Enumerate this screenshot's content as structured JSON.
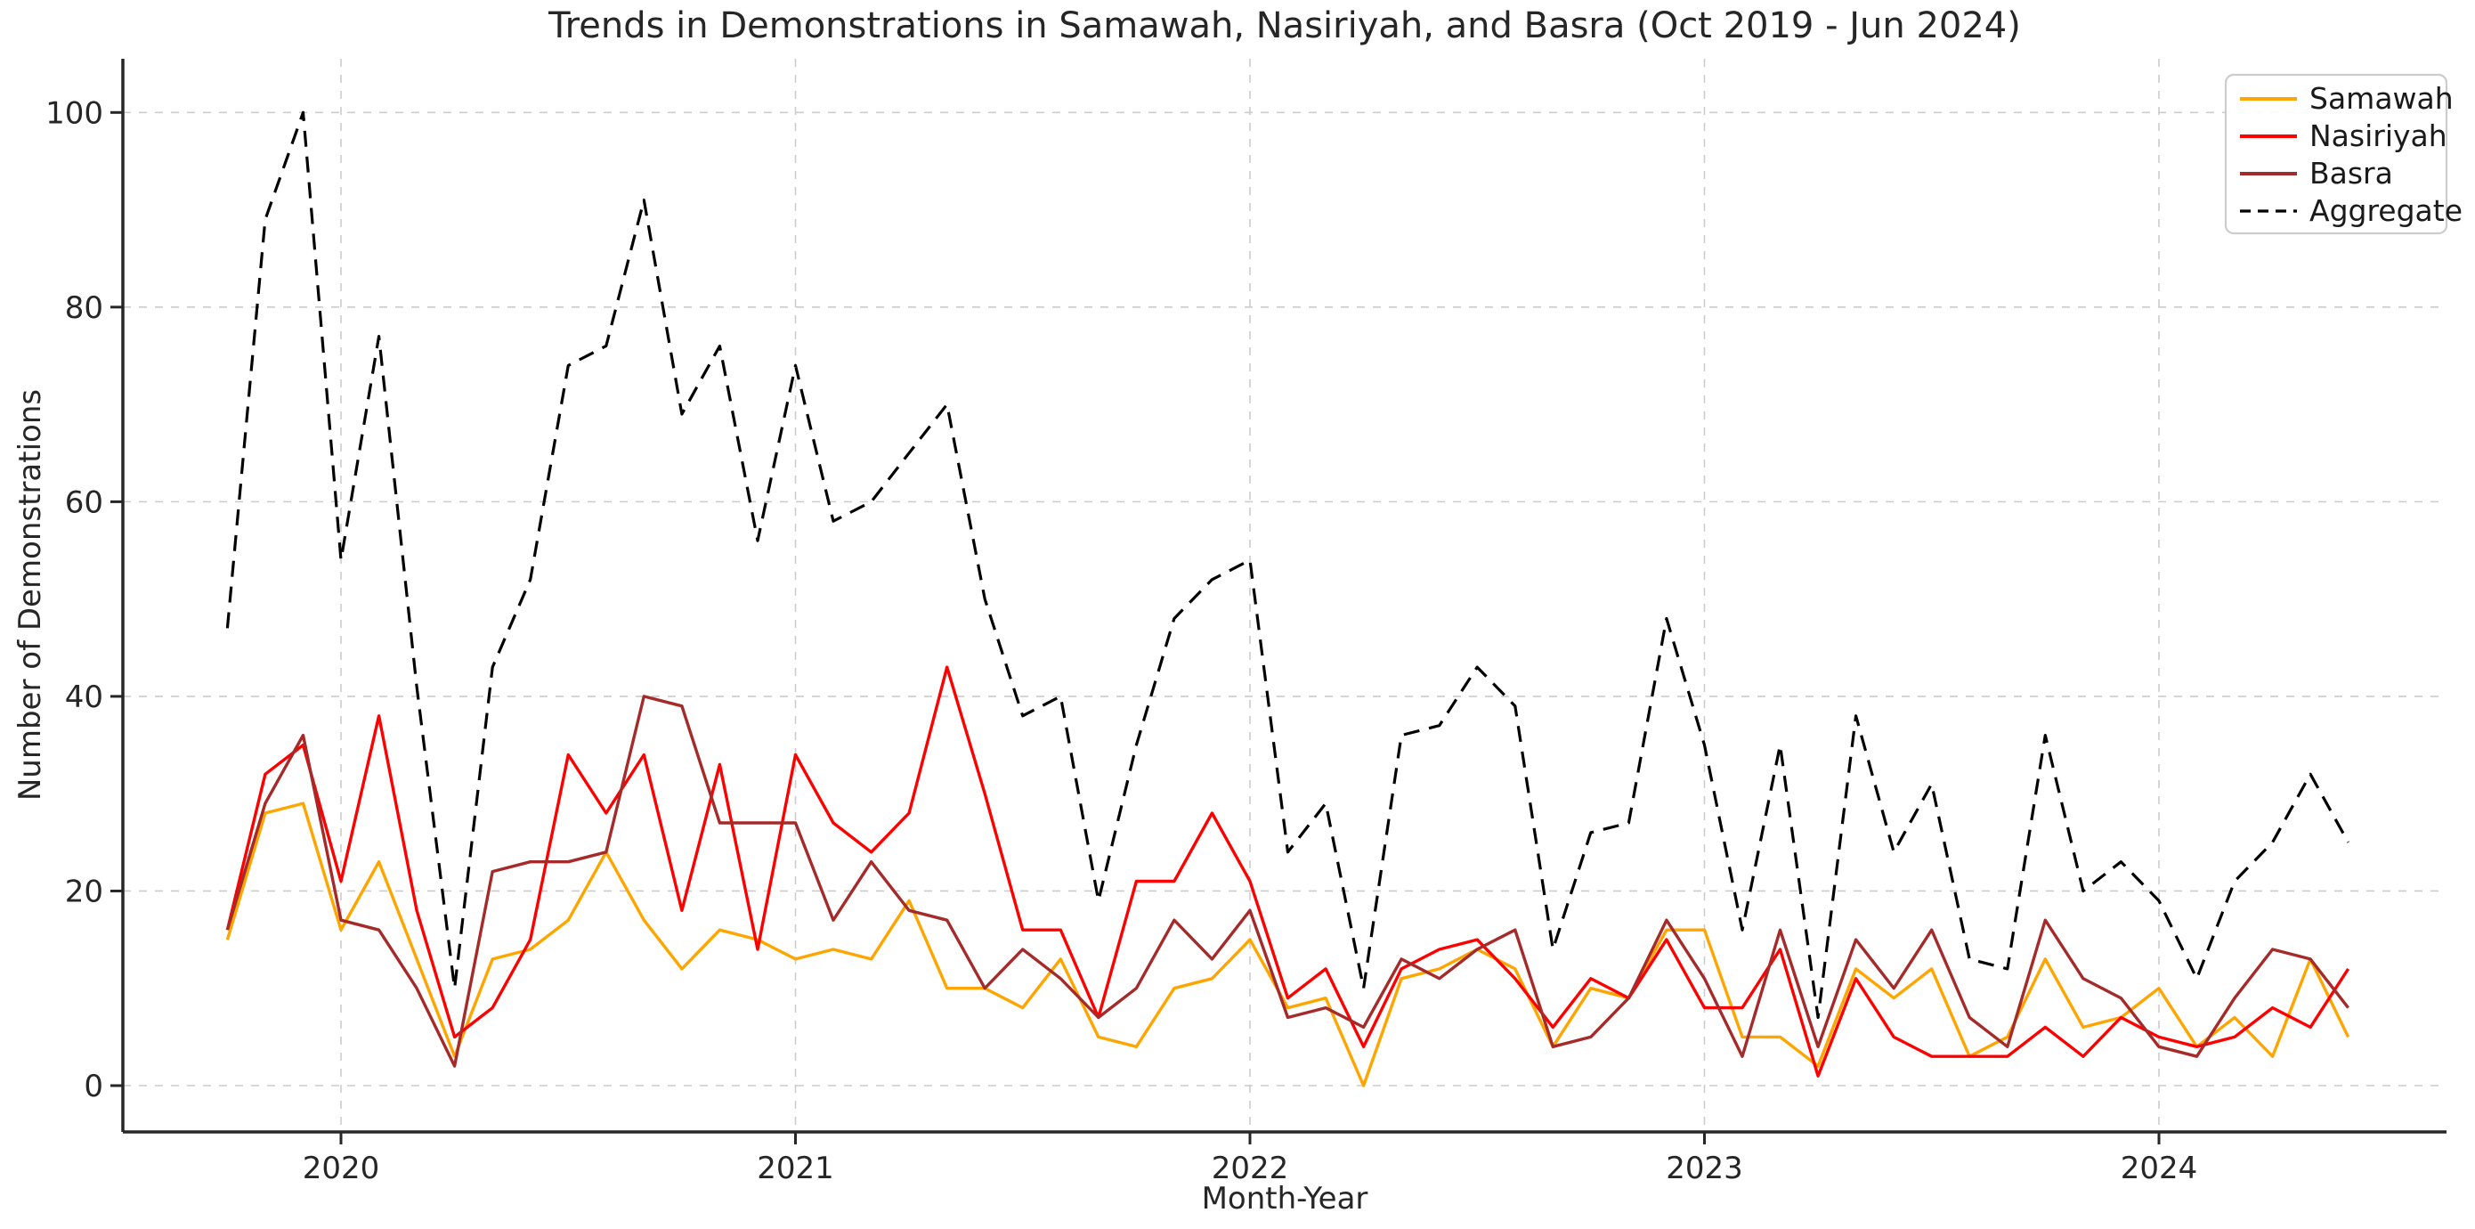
{
  "title": "Trends in Demonstrations in Samawah, Nasiriyah, and Basra (Oct 2019 - Jun 2024)",
  "chart_data": {
    "type": "line",
    "title": "Trends in Demonstrations in Samawah, Nasiriyah, and Basra (Oct 2019 - Jun 2024)",
    "xlabel": "Month-Year",
    "ylabel": "Number of Demonstrations",
    "x_tick_labels": [
      "2020",
      "2021",
      "2022",
      "2023",
      "2024"
    ],
    "y_ticks": [
      0,
      20,
      40,
      60,
      80,
      100
    ],
    "ylim": [
      -5,
      105
    ],
    "grid": true,
    "legend_position": "upper right",
    "background": "#ffffff",
    "grid_color": "#cccccc",
    "axis_color": "#262626",
    "months": [
      "2019-10",
      "2019-11",
      "2019-12",
      "2020-01",
      "2020-02",
      "2020-03",
      "2020-04",
      "2020-05",
      "2020-06",
      "2020-07",
      "2020-08",
      "2020-09",
      "2020-10",
      "2020-11",
      "2020-12",
      "2021-01",
      "2021-02",
      "2021-03",
      "2021-04",
      "2021-05",
      "2021-06",
      "2021-07",
      "2021-08",
      "2021-09",
      "2021-10",
      "2021-11",
      "2021-12",
      "2022-01",
      "2022-02",
      "2022-03",
      "2022-04",
      "2022-05",
      "2022-06",
      "2022-07",
      "2022-08",
      "2022-09",
      "2022-10",
      "2022-11",
      "2022-12",
      "2023-01",
      "2023-02",
      "2023-03",
      "2023-04",
      "2023-05",
      "2023-06",
      "2023-07",
      "2023-08",
      "2023-09",
      "2023-10",
      "2023-11",
      "2023-12",
      "2024-01",
      "2024-02",
      "2024-03",
      "2024-04",
      "2024-05",
      "2024-06"
    ],
    "series": [
      {
        "name": "Samawah",
        "color": "#FFA500",
        "style": "solid",
        "values": [
          15,
          28,
          29,
          16,
          23,
          13,
          3,
          13,
          14,
          17,
          24,
          17,
          12,
          16,
          15,
          13,
          14,
          13,
          19,
          10,
          10,
          8,
          13,
          5,
          4,
          10,
          11,
          15,
          8,
          9,
          0,
          11,
          12,
          14,
          12,
          4,
          10,
          9,
          16,
          16,
          5,
          5,
          2,
          12,
          9,
          12,
          3,
          5,
          13,
          6,
          7,
          10,
          4,
          7,
          3,
          13,
          5
        ]
      },
      {
        "name": "Nasiriyah",
        "color": "#FF0000",
        "style": "solid",
        "values": [
          16,
          32,
          35,
          21,
          38,
          18,
          5,
          8,
          15,
          34,
          28,
          34,
          18,
          33,
          14,
          34,
          27,
          24,
          28,
          43,
          30,
          16,
          16,
          7,
          21,
          21,
          28,
          21,
          9,
          12,
          4,
          12,
          14,
          15,
          11,
          6,
          11,
          9,
          15,
          8,
          8,
          14,
          1,
          11,
          5,
          3,
          3,
          3,
          6,
          3,
          7,
          5,
          4,
          5,
          8,
          6,
          12
        ]
      },
      {
        "name": "Basra",
        "color": "#A52A2A",
        "style": "solid",
        "values": [
          16,
          29,
          36,
          17,
          16,
          10,
          2,
          22,
          23,
          23,
          24,
          40,
          39,
          27,
          27,
          27,
          17,
          23,
          18,
          17,
          10,
          14,
          11,
          7,
          10,
          17,
          13,
          18,
          7,
          8,
          6,
          13,
          11,
          14,
          16,
          4,
          5,
          9,
          17,
          11,
          3,
          16,
          4,
          15,
          10,
          16,
          7,
          4,
          17,
          11,
          9,
          4,
          3,
          9,
          14,
          13,
          8
        ]
      },
      {
        "name": "Aggregate",
        "color": "#000000",
        "style": "dashed",
        "values": [
          47,
          89,
          100,
          54,
          77,
          41,
          10,
          43,
          52,
          74,
          76,
          91,
          69,
          76,
          56,
          74,
          58,
          60,
          65,
          70,
          50,
          38,
          40,
          19,
          35,
          48,
          52,
          54,
          24,
          29,
          10,
          36,
          37,
          43,
          39,
          14,
          26,
          27,
          48,
          35,
          16,
          35,
          7,
          38,
          24,
          31,
          13,
          12,
          36,
          20,
          23,
          19,
          11,
          21,
          25,
          32,
          25
        ]
      }
    ]
  }
}
